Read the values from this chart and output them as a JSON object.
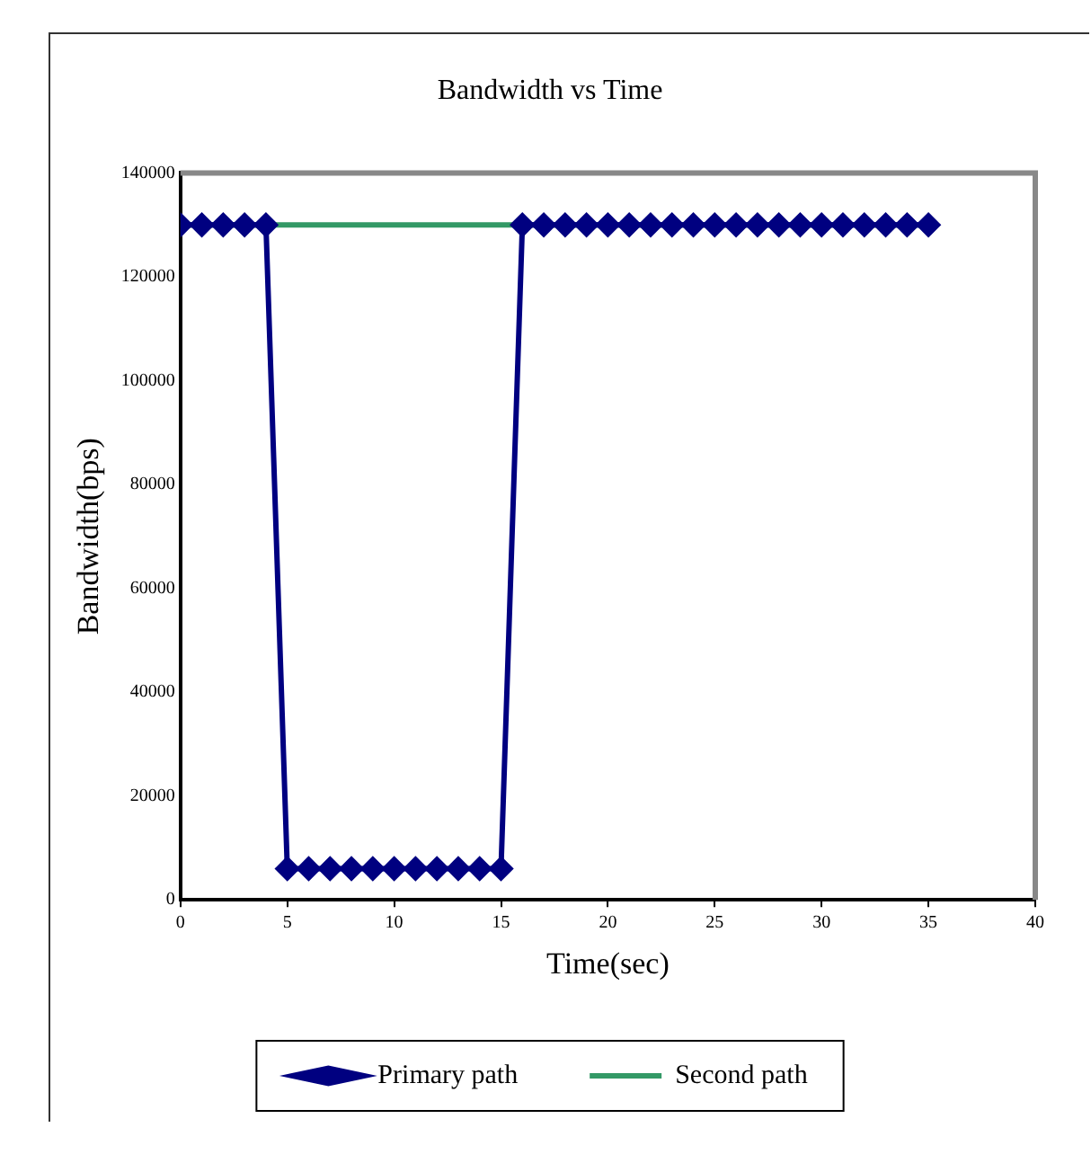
{
  "chart_data": {
    "type": "line",
    "title": "Bandwidth vs Time",
    "xlabel": "Time(sec)",
    "ylabel": "Bandwidth(bps)",
    "xlim": [
      0,
      40
    ],
    "xticks": [
      0,
      5,
      10,
      15,
      20,
      25,
      30,
      35,
      40
    ],
    "ylim": [
      0,
      140000
    ],
    "yticks": [
      0,
      20000,
      40000,
      60000,
      80000,
      100000,
      120000,
      140000
    ],
    "grid": false,
    "legend": "bottom",
    "series": [
      {
        "name": "Primary path",
        "color": "#000080",
        "marker": "diamond",
        "x": [
          0,
          1,
          2,
          3,
          4,
          5,
          6,
          7,
          8,
          9,
          10,
          11,
          12,
          13,
          14,
          15,
          16,
          17,
          18,
          19,
          20,
          21,
          22,
          23,
          24,
          25,
          26,
          27,
          28,
          29,
          30,
          31,
          32,
          33,
          34,
          35
        ],
        "values": [
          130000,
          130000,
          130000,
          130000,
          130000,
          6000,
          6000,
          6000,
          6000,
          6000,
          6000,
          6000,
          6000,
          6000,
          6000,
          6000,
          130000,
          130000,
          130000,
          130000,
          130000,
          130000,
          130000,
          130000,
          130000,
          130000,
          130000,
          130000,
          130000,
          130000,
          130000,
          130000,
          130000,
          130000,
          130000,
          130000
        ]
      },
      {
        "name": "Second path",
        "color": "#339966",
        "marker": "none",
        "x": [
          0,
          35
        ],
        "values": [
          130000,
          130000
        ]
      }
    ]
  }
}
